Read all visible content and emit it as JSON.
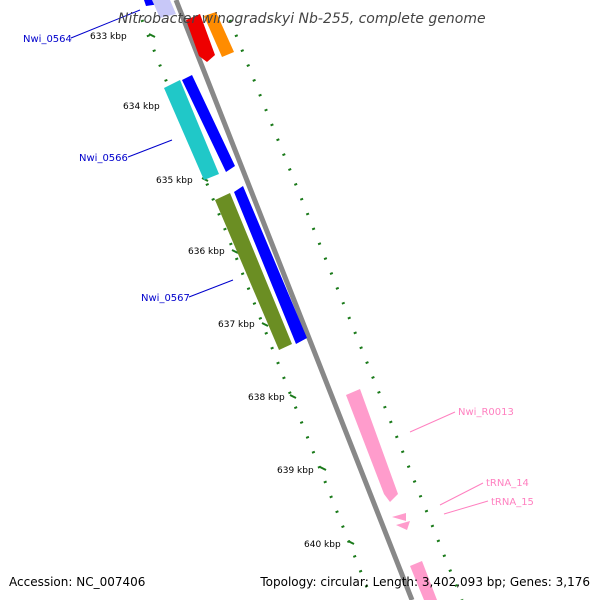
{
  "title": "Nitrobacter winogradskyi Nb-255, complete genome",
  "accession": "Accession: NC_007406",
  "summary": "Topology: circular; Length: 3,402,093 bp; Genes: 3,176",
  "ticks": [
    {
      "label": "633 kbp"
    },
    {
      "label": "634 kbp"
    },
    {
      "label": "635 kbp"
    },
    {
      "label": "636 kbp"
    },
    {
      "label": "637 kbp"
    },
    {
      "label": "638 kbp"
    },
    {
      "label": "639 kbp"
    },
    {
      "label": "640 kbp"
    }
  ],
  "gene_labels": [
    {
      "label": "Nwi_0564",
      "color": "#0000cc"
    },
    {
      "label": "Nwi_0566",
      "color": "#0000cc"
    },
    {
      "label": "Nwi_0567",
      "color": "#0000cc"
    },
    {
      "label": "Nwi_R0013",
      "color": "#ff80c0"
    },
    {
      "label": "tRNA_14",
      "color": "#ff80c0"
    },
    {
      "label": "tRNA_15",
      "color": "#ff80c0"
    }
  ],
  "colors": {
    "backbone": "#888888",
    "dotted_track": "#1a7a1a",
    "forward_cds": "#0000ff",
    "reverse_cds_red": "#ee0000",
    "reverse_cds_orange": "#ff8c00",
    "gene_cyan": "#20c8c8",
    "gene_olive": "#6b8e23",
    "rna": "#ff9ccc"
  }
}
